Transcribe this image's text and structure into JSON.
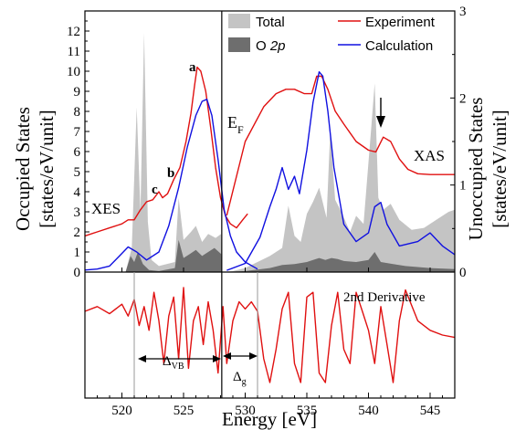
{
  "chart_data": {
    "type": "line",
    "xlabel": "Energy [eV]",
    "xlim": [
      517,
      547
    ],
    "x_ticks": [
      "520",
      "525",
      "530",
      "535",
      "540",
      "545"
    ],
    "ylabel_left": "Occupied States",
    "ylabel_left_units": "[states/eV/unit]",
    "ylim_left": [
      0,
      13
    ],
    "y_ticks_left": [
      "0",
      "1",
      "2",
      "3",
      "4",
      "5",
      "6",
      "7",
      "8",
      "9",
      "10",
      "11",
      "12"
    ],
    "ylabel_right": "Unoccupied States",
    "ylabel_right_units": "[states/eV/unit]",
    "ylim_right": [
      0,
      3
    ],
    "y_ticks_right": [
      "0",
      "1",
      "2",
      "3"
    ],
    "fermi_energy_eV": 528.1,
    "annotations": {
      "xes": "XES",
      "xas": "XAS",
      "ef_main": "E",
      "ef_sub": "F",
      "peak_a": "a",
      "peak_b": "b",
      "peak_c": "c",
      "deriv_title": "2nd Derivative",
      "delta_vb_main": "Δ",
      "delta_vb_sub": "VB",
      "delta_g_main": "Δ",
      "delta_g_sub": "g"
    },
    "legend": [
      {
        "label": "Total",
        "color": "#c4c4c4",
        "kind": "fill"
      },
      {
        "label": "O ",
        "label_italic": "2p",
        "color": "#6e6e6e",
        "kind": "fill"
      },
      {
        "label": "Experiment",
        "color": "#e01010",
        "kind": "line"
      },
      {
        "label": "Calculation",
        "color": "#1010e0",
        "kind": "line"
      }
    ],
    "series": [
      {
        "name": "Experiment",
        "kind": "xes",
        "axis": "left",
        "color": "#e01010",
        "x": [
          517,
          518,
          519,
          520,
          520.5,
          521,
          521.5,
          522,
          522.5,
          523,
          523.3,
          523.7,
          524.2,
          524.7,
          525.2,
          525.6,
          525.9,
          526.1,
          526.4,
          526.8,
          527.2,
          527.6,
          528,
          528.4,
          528.8,
          529.3,
          529.8,
          530.2
        ],
        "y": [
          1.8,
          2.0,
          2.2,
          2.4,
          2.6,
          2.6,
          3.1,
          3.5,
          3.6,
          4.0,
          3.7,
          3.9,
          4.6,
          5.2,
          6.5,
          7.9,
          9.3,
          10.2,
          10.0,
          9.0,
          7.2,
          5.2,
          3.7,
          2.8,
          2.4,
          2.2,
          2.6,
          2.9
        ]
      },
      {
        "name": "Experiment",
        "kind": "xas",
        "axis": "right",
        "color": "#e01010",
        "x": [
          528.5,
          530,
          531.5,
          532.5,
          533.3,
          534,
          534.8,
          535.4,
          535.8,
          536.2,
          536.7,
          537.3,
          538,
          539,
          540,
          540.6,
          541.2,
          541.8,
          542.5,
          543.2,
          544,
          545,
          547
        ],
        "y": [
          0.65,
          1.5,
          1.9,
          2.05,
          2.1,
          2.1,
          2.05,
          2.05,
          2.25,
          2.25,
          2.1,
          1.85,
          1.7,
          1.5,
          1.4,
          1.38,
          1.55,
          1.5,
          1.3,
          1.18,
          1.13,
          1.12,
          1.12
        ]
      },
      {
        "name": "Calculation",
        "kind": "occupied",
        "axis": "left",
        "color": "#1010e0",
        "x": [
          517,
          518,
          519,
          519.8,
          520.5,
          521.2,
          522,
          523,
          523.8,
          524.6,
          525.3,
          526,
          526.5,
          526.9,
          527.3,
          527.8,
          528.3,
          528.8,
          529.3,
          530,
          531
        ],
        "y": [
          0.1,
          0.15,
          0.3,
          0.8,
          1.25,
          1.0,
          0.6,
          1.0,
          2.3,
          4.2,
          6.2,
          7.8,
          8.5,
          8.6,
          7.8,
          5.6,
          3.1,
          1.8,
          1.0,
          0.5,
          0.15
        ]
      },
      {
        "name": "Calculation",
        "kind": "unoccupied",
        "axis": "right",
        "color": "#1010e0",
        "x": [
          528.5,
          530,
          531.2,
          532,
          532.5,
          533,
          533.5,
          534,
          534.4,
          535,
          535.5,
          536,
          536.3,
          536.7,
          537.2,
          538,
          539,
          540,
          540.5,
          541,
          541.5,
          542.5,
          544,
          545,
          546,
          547
        ],
        "y": [
          0.02,
          0.1,
          0.4,
          0.75,
          0.95,
          1.2,
          0.95,
          1.1,
          0.9,
          1.4,
          1.95,
          2.3,
          2.25,
          1.85,
          1.2,
          0.55,
          0.35,
          0.45,
          0.75,
          0.8,
          0.55,
          0.3,
          0.35,
          0.45,
          0.3,
          0.2
        ]
      },
      {
        "name": "Total",
        "kind": "dos",
        "axis": "left",
        "color": "#c4c4c4",
        "x": [
          517,
          520.3,
          520.8,
          521.2,
          521.5,
          521.8,
          522.1,
          522.4,
          523,
          524.3,
          524.6,
          525,
          525.6,
          526,
          526.5,
          527,
          527.6,
          528.05,
          528.1,
          529,
          530,
          531,
          532,
          533,
          533.5,
          534,
          534.5,
          535,
          535.5,
          536,
          536.6,
          536.9,
          537.3,
          537.8,
          538.5,
          539,
          539.6,
          540.2,
          540.5,
          540.8,
          541.2,
          541.8,
          542.5,
          543.5,
          544.5,
          545.5,
          546.5,
          547
        ],
        "y": [
          0,
          0,
          1.2,
          8.2,
          3.0,
          11.9,
          2.5,
          0.6,
          0.3,
          0.5,
          3.7,
          1.6,
          2.0,
          2.3,
          1.5,
          1.9,
          1.7,
          1.9,
          0,
          0.05,
          0.2,
          0.5,
          0.8,
          1.2,
          3.3,
          1.8,
          1.5,
          2.9,
          3.5,
          4.2,
          2.7,
          7.0,
          3.6,
          3.0,
          2.0,
          2.8,
          2.4,
          7.0,
          9.4,
          3.7,
          3.1,
          3.4,
          2.6,
          2.1,
          2.2,
          2.6,
          3.0,
          3.1
        ]
      },
      {
        "name": "O 2p",
        "kind": "dos",
        "axis": "left",
        "color": "#6e6e6e",
        "x": [
          517,
          520.3,
          520.7,
          521,
          521.3,
          521.7,
          522.2,
          523,
          524.3,
          524.6,
          525,
          525.5,
          526,
          526.5,
          527,
          527.5,
          528.05,
          528.1,
          530,
          532,
          533,
          534,
          535,
          535.5,
          536,
          536.5,
          537,
          537.5,
          538,
          539,
          540,
          540.5,
          541,
          542,
          543,
          544,
          545,
          547
        ],
        "y": [
          0,
          0,
          0.8,
          0.5,
          1.0,
          0.4,
          0.1,
          0.05,
          0.2,
          1.6,
          0.7,
          0.9,
          1.1,
          0.8,
          1.0,
          1.2,
          0.9,
          0,
          0.05,
          0.2,
          0.35,
          0.4,
          0.5,
          0.6,
          0.7,
          0.6,
          0.7,
          0.65,
          0.55,
          0.5,
          0.6,
          1.0,
          0.5,
          0.4,
          0.3,
          0.25,
          0.2,
          0.15
        ]
      },
      {
        "name": "2nd Derivative",
        "kind": "derivative",
        "axis": "bottom",
        "color": "#e01010",
        "x": [
          517,
          518,
          519,
          520,
          520.5,
          521,
          521.4,
          521.8,
          522.2,
          522.6,
          523,
          523.4,
          523.8,
          524.2,
          524.6,
          525,
          525.4,
          525.8,
          526.2,
          526.6,
          527,
          527.4,
          527.8,
          528.2,
          528.5,
          529,
          529.5,
          530,
          530.5,
          531,
          531.5,
          532,
          532.5,
          533,
          533.5,
          534,
          534.5,
          535,
          535.5,
          536,
          536.5,
          537,
          537.5,
          538,
          538.5,
          539,
          539.5,
          540,
          540.5,
          541,
          541.5,
          542,
          542.5,
          543,
          544,
          545,
          546,
          547
        ],
        "y": [
          0.5,
          0.6,
          0.45,
          0.65,
          0.4,
          0.75,
          0.2,
          0.6,
          0.1,
          0.9,
          0.3,
          -0.6,
          0.4,
          0.8,
          -0.5,
          1.0,
          -0.7,
          0.3,
          0.6,
          -0.2,
          0.7,
          0.1,
          -0.8,
          0.6,
          -0.6,
          0.3,
          0.7,
          0.55,
          0.7,
          0.5,
          -0.5,
          -1.0,
          -0.3,
          0.55,
          0.9,
          -0.6,
          -1.0,
          0.8,
          0.9,
          -0.8,
          -1.0,
          0.2,
          0.9,
          -0.3,
          -0.6,
          0.9,
          0.5,
          0.1,
          -0.6,
          0.6,
          -0.2,
          -1.0,
          0.3,
          0.95,
          0.3,
          0.1,
          0.0,
          -0.05
        ]
      }
    ],
    "markers": [
      {
        "label": "Δ_VB",
        "from_eV": 521.0,
        "to_eV": 528.1
      },
      {
        "label": "Δ_g",
        "from_eV": 528.1,
        "to_eV": 531.0
      }
    ]
  }
}
